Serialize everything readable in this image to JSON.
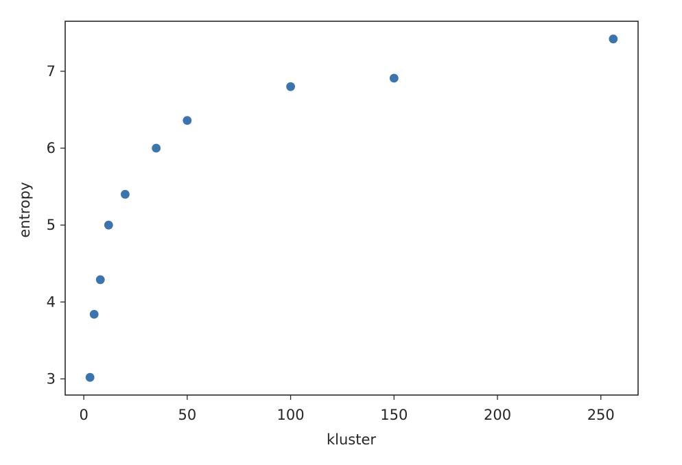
{
  "chart_data": {
    "type": "scatter",
    "title": "",
    "xlabel": "kluster",
    "ylabel": "entropy",
    "xlim": [
      -9,
      268
    ],
    "ylim": [
      2.79,
      7.65
    ],
    "x_ticks": [
      0,
      50,
      100,
      150,
      200,
      250
    ],
    "y_ticks": [
      3,
      4,
      5,
      6,
      7
    ],
    "grid": false,
    "legend": "none",
    "color": "#3a75b0",
    "x": [
      3,
      5,
      8,
      12,
      20,
      35,
      50,
      100,
      150,
      256
    ],
    "y": [
      3.02,
      3.84,
      4.29,
      5.0,
      5.4,
      6.0,
      6.36,
      6.8,
      6.91,
      7.42
    ]
  }
}
